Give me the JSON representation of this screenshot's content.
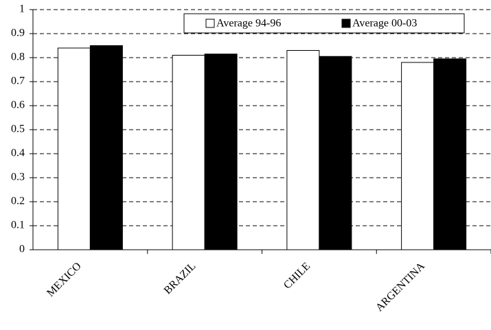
{
  "chart_data": {
    "type": "bar",
    "categories": [
      "MEXICO",
      "BRAZIL",
      "CHILE",
      "ARGENTINA"
    ],
    "series": [
      {
        "name": "Average 94-96",
        "color": "#ffffff",
        "values": [
          0.84,
          0.81,
          0.83,
          0.78
        ]
      },
      {
        "name": "Average 00-03",
        "color": "#000000",
        "values": [
          0.85,
          0.815,
          0.805,
          0.795
        ]
      }
    ],
    "ylim": [
      0,
      1
    ],
    "yticks": [
      0,
      0.1,
      0.2,
      0.3,
      0.4,
      0.5,
      0.6,
      0.7,
      0.8,
      0.9,
      1
    ],
    "grid": true,
    "legend": "top-right"
  }
}
